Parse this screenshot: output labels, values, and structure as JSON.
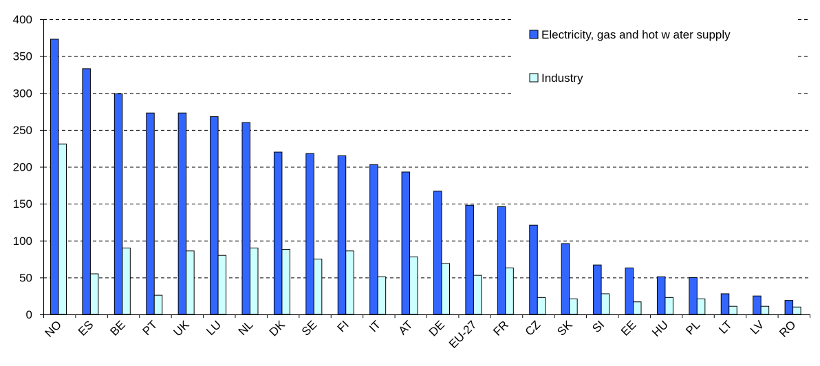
{
  "chart_data": {
    "type": "bar",
    "categories": [
      "NO",
      "ES",
      "BE",
      "PT",
      "UK",
      "LU",
      "NL",
      "DK",
      "SE",
      "FI",
      "IT",
      "AT",
      "DE",
      "EU-27",
      "FR",
      "CZ",
      "SK",
      "SI",
      "EE",
      "HU",
      "PL",
      "LT",
      "LV",
      "RO"
    ],
    "series": [
      {
        "name": "Electricity, gas and hot w ater supply",
        "color": "#3366ff",
        "values": [
          373,
          333,
          299,
          273,
          273,
          268,
          260,
          220,
          218,
          215,
          203,
          193,
          167,
          148,
          146,
          121,
          96,
          67,
          63,
          51,
          50,
          28,
          25,
          19
        ]
      },
      {
        "name": "Industry",
        "color": "#ccffff",
        "values": [
          231,
          55,
          90,
          26,
          86,
          80,
          90,
          88,
          75,
          86,
          51,
          78,
          69,
          53,
          63,
          23,
          21,
          28,
          17,
          23,
          21,
          11,
          11,
          10
        ]
      }
    ],
    "yticks": [
      0,
      50,
      100,
      150,
      200,
      250,
      300,
      350,
      400
    ],
    "ylim": [
      0,
      400
    ],
    "grid": true,
    "legend_position": "top-right",
    "title": "",
    "xlabel": "",
    "ylabel": ""
  }
}
